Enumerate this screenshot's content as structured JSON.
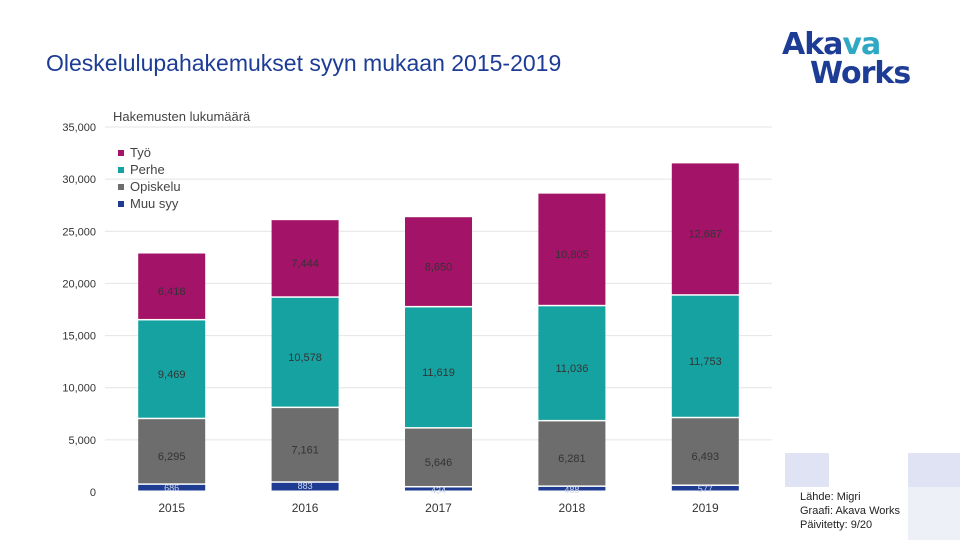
{
  "title": "Oleskelulupahakemukset syyn mukaan 2015-2019",
  "logo": {
    "line1a": "Aka",
    "line1b": "va",
    "line2": "Works"
  },
  "source": {
    "line1": "Lähde: Migri",
    "line2": "Graafi: Akava Works",
    "line3": "Päivitetty: 9/20"
  },
  "colors": {
    "tyo": "#a31468",
    "perhe": "#17a2a2",
    "opiskelu": "#6d6d6d",
    "muu": "#1e3d92"
  },
  "chart_data": {
    "type": "bar",
    "stacked": true,
    "ylabel": "Hakemusten lukumäärä",
    "ylim": [
      0,
      35000
    ],
    "yticks": [
      0,
      5000,
      10000,
      15000,
      20000,
      25000,
      30000,
      35000
    ],
    "ytick_labels": [
      "0",
      "5,000",
      "10,000",
      "15,000",
      "20,000",
      "25,000",
      "30,000",
      "35,000"
    ],
    "categories": [
      "2015",
      "2016",
      "2017",
      "2018",
      "2019"
    ],
    "series": [
      {
        "name": "Muu syy",
        "key": "muu",
        "values": [
          686,
          883,
          434,
          488,
          577
        ],
        "labels": [
          "686",
          "883",
          "434",
          "488",
          "577"
        ]
      },
      {
        "name": "Opiskelu",
        "key": "opiskelu",
        "values": [
          6295,
          7161,
          5646,
          6281,
          6493
        ],
        "labels": [
          "6,295",
          "7,161",
          "5,646",
          "6,281",
          "6,493"
        ]
      },
      {
        "name": "Perhe",
        "key": "perhe",
        "values": [
          9469,
          10578,
          11619,
          11036,
          11753
        ],
        "labels": [
          "9,469",
          "10,578",
          "11,619",
          "11,036",
          "11,753"
        ]
      },
      {
        "name": "Työ",
        "key": "tyo",
        "values": [
          6418,
          7444,
          8650,
          10805,
          12687
        ],
        "labels": [
          "6,418",
          "7,444",
          "8,650",
          "10,805",
          "12,687"
        ]
      }
    ],
    "legend": [
      "Työ",
      "Perhe",
      "Opiskelu",
      "Muu syy"
    ],
    "legend_position": "top-left"
  }
}
